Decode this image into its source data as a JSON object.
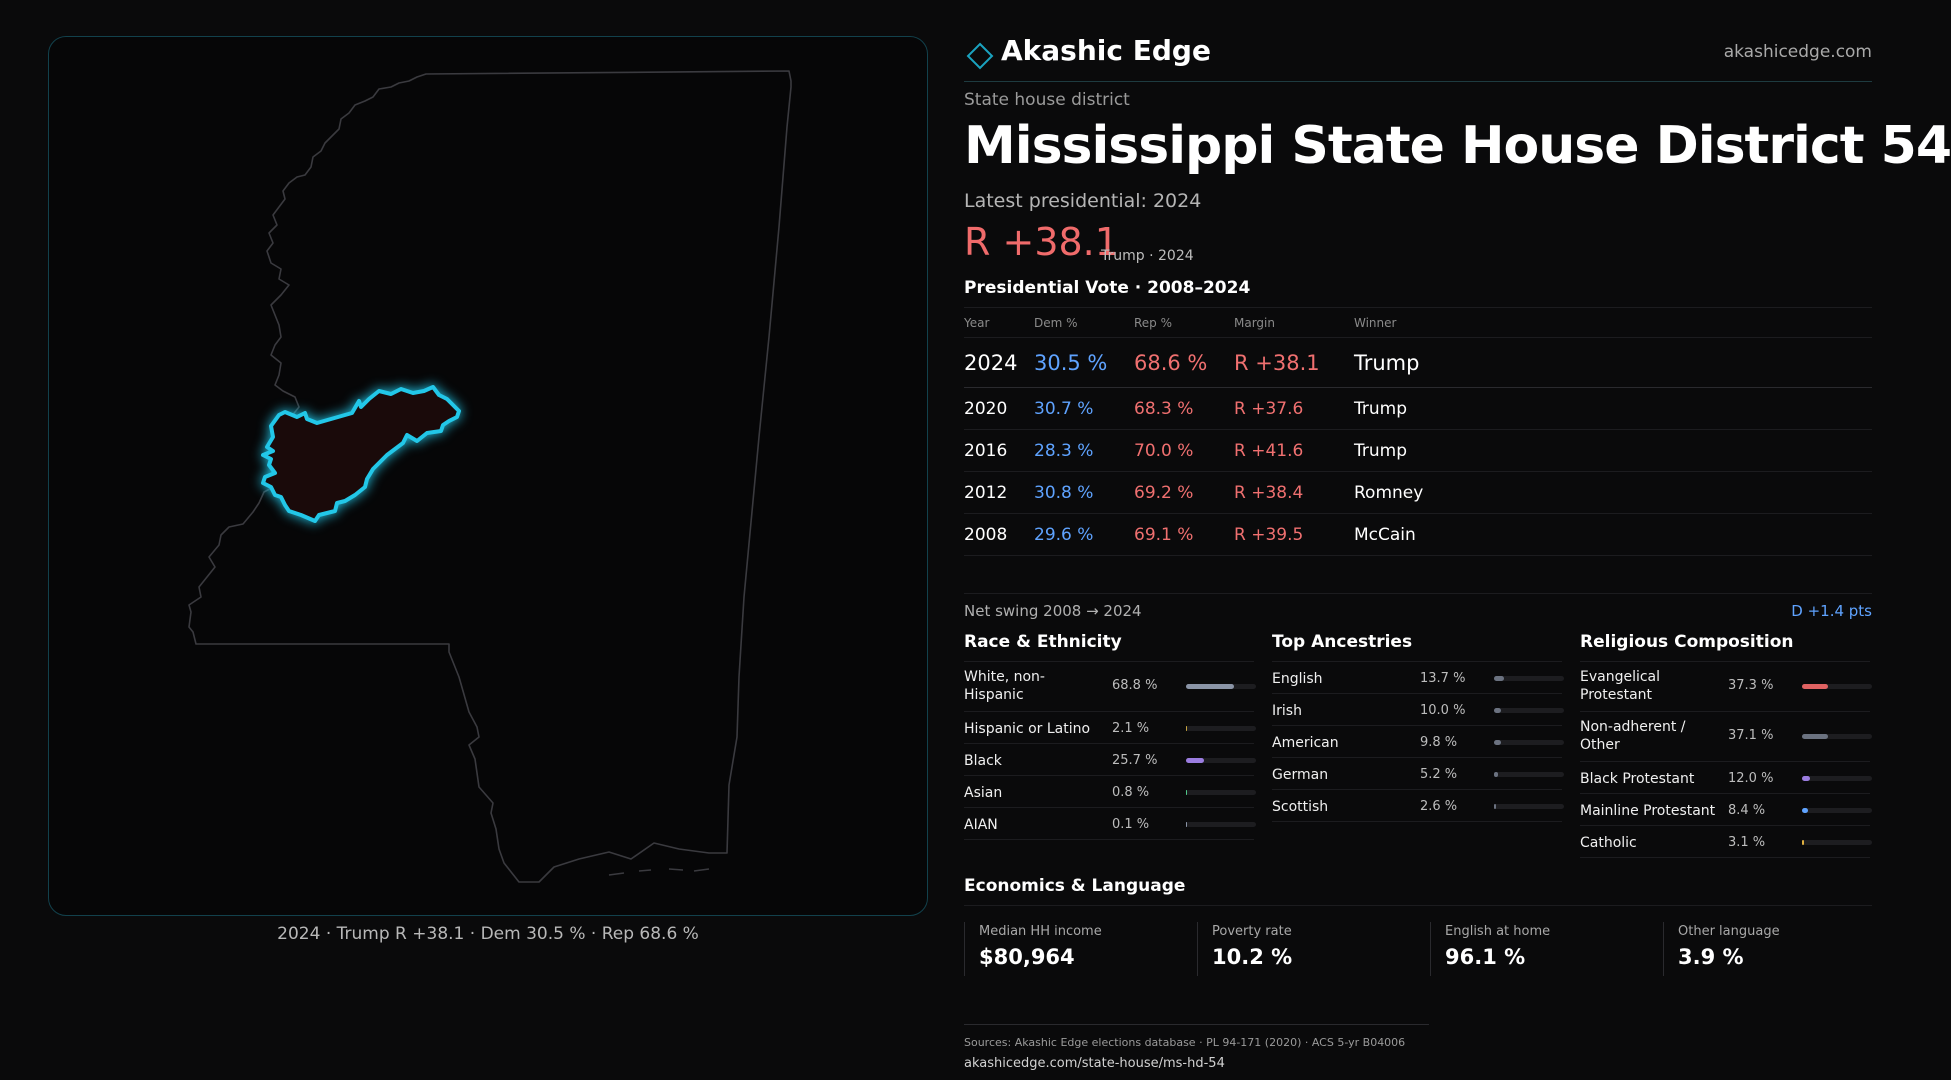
{
  "brand": {
    "name": "Akashic Edge",
    "url": "akashicedge.com",
    "icon": "diamond-icon"
  },
  "district": {
    "type_label": "State house district",
    "title": "Mississippi State House District 54",
    "latest_label": "Latest presidential: 2024",
    "latest_margin": "R +38.1",
    "latest_sub": "Trump · 2024"
  },
  "map": {
    "caption": "2024 · Trump R +38.1 · Dem 30.5 % · Rep 68.6 %",
    "highlight_color": "#22c7e8"
  },
  "vote": {
    "title": "Presidential Vote · 2008–2024",
    "headers": [
      "Year",
      "Dem %",
      "Rep %",
      "Margin",
      "Winner"
    ],
    "rows": [
      {
        "year": "2024",
        "dem": "30.5 %",
        "rep": "68.6 %",
        "margin": "R +38.1",
        "winner": "Trump"
      },
      {
        "year": "2020",
        "dem": "30.7 %",
        "rep": "68.3 %",
        "margin": "R +37.6",
        "winner": "Trump"
      },
      {
        "year": "2016",
        "dem": "28.3 %",
        "rep": "70.0 %",
        "margin": "R +41.6",
        "winner": "Trump"
      },
      {
        "year": "2012",
        "dem": "30.8 %",
        "rep": "69.2 %",
        "margin": "R +38.4",
        "winner": "Romney"
      },
      {
        "year": "2008",
        "dem": "29.6 %",
        "rep": "69.1 %",
        "margin": "R +39.5",
        "winner": "McCain"
      }
    ],
    "swing_label": "Net swing 2008 → 2024",
    "swing_value": "D +1.4 pts"
  },
  "race": {
    "title": "Race & Ethnicity",
    "items": [
      {
        "label": "White, non-Hispanic",
        "pct": "68.8 %",
        "value": 68.8,
        "color": "#8a94a6"
      },
      {
        "label": "Hispanic or Latino",
        "pct": "2.1 %",
        "value": 2.1,
        "color": "#c9a640"
      },
      {
        "label": "Black",
        "pct": "25.7 %",
        "value": 25.7,
        "color": "#9b7de0"
      },
      {
        "label": "Asian",
        "pct": "0.8 %",
        "value": 0.8,
        "color": "#4fc98a"
      },
      {
        "label": "AIAN",
        "pct": "0.1 %",
        "value": 0.1,
        "color": "#8a94a6"
      }
    ]
  },
  "ancestry": {
    "title": "Top Ancestries",
    "items": [
      {
        "label": "English",
        "pct": "13.7 %",
        "value": 13.7,
        "color": "#6b7280"
      },
      {
        "label": "Irish",
        "pct": "10.0 %",
        "value": 10.0,
        "color": "#6b7280"
      },
      {
        "label": "American",
        "pct": "9.8 %",
        "value": 9.8,
        "color": "#6b7280"
      },
      {
        "label": "German",
        "pct": "5.2 %",
        "value": 5.2,
        "color": "#6b7280"
      },
      {
        "label": "Scottish",
        "pct": "2.6 %",
        "value": 2.6,
        "color": "#6b7280"
      }
    ]
  },
  "religion": {
    "title": "Religious Composition",
    "items": [
      {
        "label": "Evangelical Protestant",
        "pct": "37.3 %",
        "value": 37.3,
        "color": "#e06262"
      },
      {
        "label": "Non-adherent / Other",
        "pct": "37.1 %",
        "value": 37.1,
        "color": "#6b7280"
      },
      {
        "label": "Black Protestant",
        "pct": "12.0 %",
        "value": 12.0,
        "color": "#9b7de0"
      },
      {
        "label": "Mainline Protestant",
        "pct": "8.4 %",
        "value": 8.4,
        "color": "#5fa3ff"
      },
      {
        "label": "Catholic",
        "pct": "3.1 %",
        "value": 3.1,
        "color": "#e0b040"
      }
    ]
  },
  "economics": {
    "title": "Economics & Language",
    "items": [
      {
        "label": "Median HH income",
        "value": "$80,964"
      },
      {
        "label": "Poverty rate",
        "value": "10.2 %"
      },
      {
        "label": "English at home",
        "value": "96.1 %"
      },
      {
        "label": "Other language",
        "value": "3.9 %"
      }
    ]
  },
  "footer": {
    "sources": "Sources: Akashic Edge elections database · PL 94-171 (2020) · ACS 5-yr B04006",
    "url": "akashicedge.com/state-house/ms-hd-54"
  }
}
